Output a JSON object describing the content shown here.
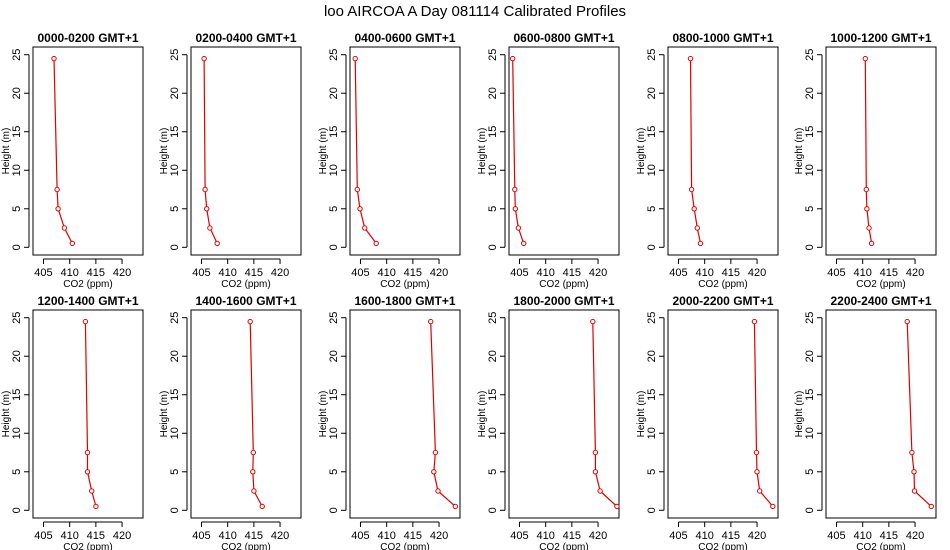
{
  "title": "loo AIRCOA A  Day 081114  Calibrated Profiles",
  "colors": {
    "series": "#e00000",
    "axis": "#000000"
  },
  "chart_data": [
    {
      "type": "line",
      "title": "0000-0200 GMT+1",
      "xlabel": "CO2 (ppm)",
      "ylabel": "Height (m)",
      "xlim": [
        403,
        424
      ],
      "ylim": [
        -1,
        26
      ],
      "xticks": [
        405,
        410,
        415,
        420
      ],
      "yticks": [
        0,
        5,
        10,
        15,
        20,
        25
      ],
      "x": [
        410.5,
        409.0,
        407.8,
        407.6,
        407.0
      ],
      "y": [
        0.5,
        2.5,
        5,
        7.5,
        24.5
      ]
    },
    {
      "type": "line",
      "title": "0200-0400 GMT+1",
      "xlabel": "CO2 (ppm)",
      "ylabel": "Height (m)",
      "xlim": [
        403,
        424
      ],
      "ylim": [
        -1,
        26
      ],
      "xticks": [
        405,
        410,
        415,
        420
      ],
      "yticks": [
        0,
        5,
        10,
        15,
        20,
        25
      ],
      "x": [
        408.0,
        406.6,
        406.0,
        405.7,
        405.5
      ],
      "y": [
        0.5,
        2.5,
        5,
        7.5,
        24.5
      ]
    },
    {
      "type": "line",
      "title": "0400-0600 GMT+1",
      "xlabel": "CO2 (ppm)",
      "ylabel": "Height (m)",
      "xlim": [
        403,
        424
      ],
      "ylim": [
        -1,
        26
      ],
      "xticks": [
        405,
        410,
        415,
        420
      ],
      "yticks": [
        0,
        5,
        10,
        15,
        20,
        25
      ],
      "x": [
        408.0,
        405.8,
        404.9,
        404.4,
        404.0
      ],
      "y": [
        0.5,
        2.5,
        5,
        7.5,
        24.5
      ]
    },
    {
      "type": "line",
      "title": "0600-0800 GMT+1",
      "xlabel": "CO2 (ppm)",
      "ylabel": "Height (m)",
      "xlim": [
        403,
        424
      ],
      "ylim": [
        -1,
        26
      ],
      "xticks": [
        405,
        410,
        415,
        420
      ],
      "yticks": [
        0,
        5,
        10,
        15,
        20,
        25
      ],
      "x": [
        405.8,
        404.8,
        404.2,
        404.1,
        403.7
      ],
      "y": [
        0.5,
        2.5,
        5,
        7.5,
        24.5
      ]
    },
    {
      "type": "line",
      "title": "0800-1000 GMT+1",
      "xlabel": "CO2 (ppm)",
      "ylabel": "Height (m)",
      "xlim": [
        403,
        424
      ],
      "ylim": [
        -1,
        26
      ],
      "xticks": [
        405,
        410,
        415,
        420
      ],
      "yticks": [
        0,
        5,
        10,
        15,
        20,
        25
      ],
      "x": [
        409.2,
        408.6,
        408.0,
        407.5,
        407.3
      ],
      "y": [
        0.5,
        2.5,
        5,
        7.5,
        24.5
      ]
    },
    {
      "type": "line",
      "title": "1000-1200 GMT+1",
      "xlabel": "CO2 (ppm)",
      "ylabel": "Height (m)",
      "xlim": [
        403,
        424
      ],
      "ylim": [
        -1,
        26
      ],
      "xticks": [
        405,
        410,
        415,
        420
      ],
      "yticks": [
        0,
        5,
        10,
        15,
        20,
        25
      ],
      "x": [
        411.7,
        411.2,
        410.8,
        410.7,
        410.5
      ],
      "y": [
        0.5,
        2.5,
        5,
        7.5,
        24.5
      ]
    },
    {
      "type": "line",
      "title": "1200-1400 GMT+1",
      "xlabel": "CO2 (ppm)",
      "ylabel": "Height (m)",
      "xlim": [
        403,
        424
      ],
      "ylim": [
        -1,
        26
      ],
      "xticks": [
        405,
        410,
        415,
        420
      ],
      "yticks": [
        0,
        5,
        10,
        15,
        20,
        25
      ],
      "x": [
        415.0,
        414.2,
        413.4,
        413.4,
        413.0
      ],
      "y": [
        0.5,
        2.5,
        5,
        7.5,
        24.5
      ]
    },
    {
      "type": "line",
      "title": "1400-1600 GMT+1",
      "xlabel": "CO2 (ppm)",
      "ylabel": "Height (m)",
      "xlim": [
        403,
        424
      ],
      "ylim": [
        -1,
        26
      ],
      "xticks": [
        405,
        410,
        415,
        420
      ],
      "yticks": [
        0,
        5,
        10,
        15,
        20,
        25
      ],
      "x": [
        416.6,
        415.0,
        414.8,
        414.9,
        414.3
      ],
      "y": [
        0.5,
        2.5,
        5,
        7.5,
        24.5
      ]
    },
    {
      "type": "line",
      "title": "1600-1800 GMT+1",
      "xlabel": "CO2 (ppm)",
      "ylabel": "Height (m)",
      "xlim": [
        403,
        424
      ],
      "ylim": [
        -1,
        26
      ],
      "xticks": [
        405,
        410,
        415,
        420
      ],
      "yticks": [
        0,
        5,
        10,
        15,
        20,
        25
      ],
      "x": [
        423.1,
        419.8,
        419.0,
        419.3,
        418.4
      ],
      "y": [
        0.5,
        2.5,
        5,
        7.5,
        24.5
      ]
    },
    {
      "type": "line",
      "title": "1800-2000 GMT+1",
      "xlabel": "CO2 (ppm)",
      "ylabel": "Height (m)",
      "xlim": [
        403,
        424
      ],
      "ylim": [
        -1,
        26
      ],
      "xticks": [
        405,
        410,
        415,
        420
      ],
      "yticks": [
        0,
        5,
        10,
        15,
        20,
        25
      ],
      "x": [
        423.6,
        420.4,
        419.5,
        419.5,
        419.0
      ],
      "y": [
        0.5,
        2.5,
        5,
        7.5,
        24.5
      ]
    },
    {
      "type": "line",
      "title": "2000-2200 GMT+1",
      "xlabel": "CO2 (ppm)",
      "ylabel": "Height (m)",
      "xlim": [
        403,
        424
      ],
      "ylim": [
        -1,
        26
      ],
      "xticks": [
        405,
        410,
        415,
        420
      ],
      "yticks": [
        0,
        5,
        10,
        15,
        20,
        25
      ],
      "x": [
        423.0,
        420.5,
        420.0,
        419.9,
        419.5
      ],
      "y": [
        0.5,
        2.5,
        5,
        7.5,
        24.5
      ]
    },
    {
      "type": "line",
      "title": "2200-2400 GMT+1",
      "xlabel": "CO2 (ppm)",
      "ylabel": "Height (m)",
      "xlim": [
        403,
        424
      ],
      "ylim": [
        -1,
        26
      ],
      "xticks": [
        405,
        410,
        415,
        420
      ],
      "yticks": [
        0,
        5,
        10,
        15,
        20,
        25
      ],
      "x": [
        423.1,
        419.9,
        419.8,
        419.4,
        418.5
      ],
      "y": [
        0.5,
        2.5,
        5,
        7.5,
        24.5
      ]
    }
  ]
}
